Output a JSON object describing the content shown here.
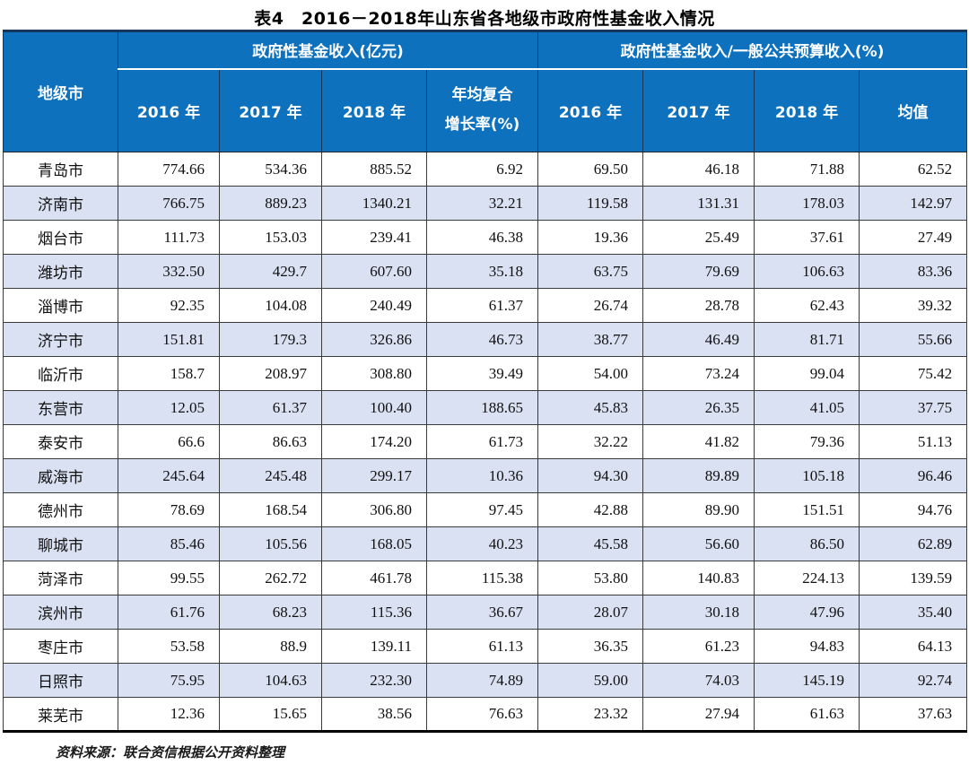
{
  "title": "表4　2016－2018年山东省各地级市政府性基金收入情况",
  "colors": {
    "header_bg": "#0d71be",
    "header_border": "#16365c",
    "alt_row_bg": "#d9e1f2",
    "grid_line": "#333333"
  },
  "table": {
    "corner_header": "地级市",
    "group1": {
      "label": "政府性基金收入(亿元)",
      "columns": [
        "2016 年",
        "2017 年",
        "2018 年",
        "年均复合\n增长率(%)"
      ]
    },
    "group2": {
      "label": "政府性基金收入/一般公共预算收入(%)",
      "columns": [
        "2016 年",
        "2017 年",
        "2018 年",
        "均值"
      ]
    },
    "rows": [
      {
        "city": "青岛市",
        "values": [
          "774.66",
          "534.36",
          "885.52",
          "6.92",
          "69.50",
          "46.18",
          "71.88",
          "62.52"
        ]
      },
      {
        "city": "济南市",
        "values": [
          "766.75",
          "889.23",
          "1340.21",
          "32.21",
          "119.58",
          "131.31",
          "178.03",
          "142.97"
        ]
      },
      {
        "city": "烟台市",
        "values": [
          "111.73",
          "153.03",
          "239.41",
          "46.38",
          "19.36",
          "25.49",
          "37.61",
          "27.49"
        ]
      },
      {
        "city": "潍坊市",
        "values": [
          "332.50",
          "429.7",
          "607.60",
          "35.18",
          "63.75",
          "79.69",
          "106.63",
          "83.36"
        ]
      },
      {
        "city": "淄博市",
        "values": [
          "92.35",
          "104.08",
          "240.49",
          "61.37",
          "26.74",
          "28.78",
          "62.43",
          "39.32"
        ]
      },
      {
        "city": "济宁市",
        "values": [
          "151.81",
          "179.3",
          "326.86",
          "46.73",
          "38.77",
          "46.49",
          "81.71",
          "55.66"
        ]
      },
      {
        "city": "临沂市",
        "values": [
          "158.7",
          "208.97",
          "308.80",
          "39.49",
          "54.00",
          "73.24",
          "99.04",
          "75.42"
        ]
      },
      {
        "city": "东营市",
        "values": [
          "12.05",
          "61.37",
          "100.40",
          "188.65",
          "45.83",
          "26.35",
          "41.05",
          "37.75"
        ]
      },
      {
        "city": "泰安市",
        "values": [
          "66.6",
          "86.63",
          "174.20",
          "61.73",
          "32.22",
          "41.82",
          "79.36",
          "51.13"
        ]
      },
      {
        "city": "威海市",
        "values": [
          "245.64",
          "245.48",
          "299.17",
          "10.36",
          "94.30",
          "89.89",
          "105.18",
          "96.46"
        ]
      },
      {
        "city": "德州市",
        "values": [
          "78.69",
          "168.54",
          "306.80",
          "97.45",
          "42.88",
          "89.90",
          "151.51",
          "94.76"
        ]
      },
      {
        "city": "聊城市",
        "values": [
          "85.46",
          "105.56",
          "168.05",
          "40.23",
          "45.58",
          "56.60",
          "86.50",
          "62.89"
        ]
      },
      {
        "city": "菏泽市",
        "values": [
          "99.55",
          "262.72",
          "461.78",
          "115.38",
          "53.80",
          "140.83",
          "224.13",
          "139.59"
        ]
      },
      {
        "city": "滨州市",
        "values": [
          "61.76",
          "68.23",
          "115.36",
          "36.67",
          "28.07",
          "30.18",
          "47.96",
          "35.40"
        ]
      },
      {
        "city": "枣庄市",
        "values": [
          "53.58",
          "88.9",
          "139.11",
          "61.13",
          "36.35",
          "61.23",
          "94.83",
          "64.13"
        ]
      },
      {
        "city": "日照市",
        "values": [
          "75.95",
          "104.63",
          "232.30",
          "74.89",
          "59.00",
          "74.03",
          "145.19",
          "92.74"
        ]
      },
      {
        "city": "莱芜市",
        "values": [
          "12.36",
          "15.65",
          "38.56",
          "76.63",
          "23.32",
          "27.94",
          "61.63",
          "37.63"
        ]
      }
    ]
  },
  "source_note": "资料来源：联合资信根据公开资料整理"
}
